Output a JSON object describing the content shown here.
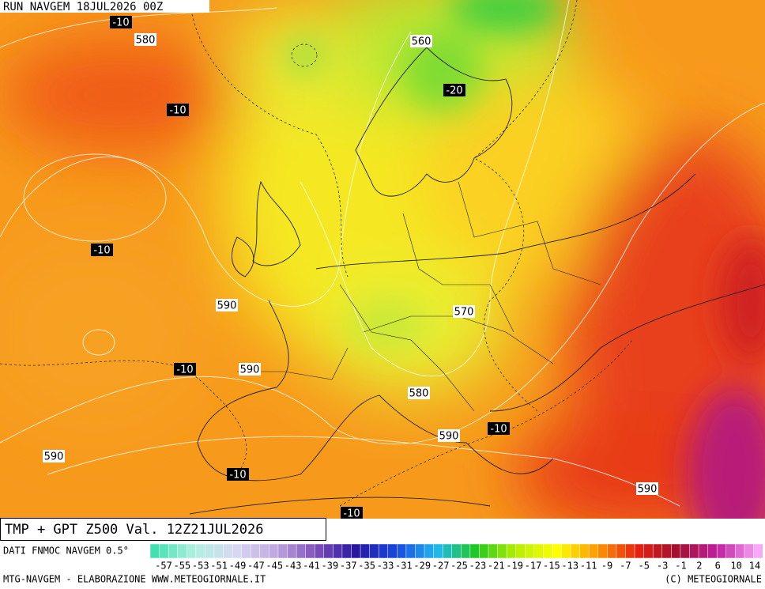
{
  "header": {
    "run": "RUN NAVGEM 18JUL2026 00Z"
  },
  "map": {
    "labels": [
      -10,
      580,
      560,
      -20,
      -10,
      -10,
      590,
      570,
      -10,
      590,
      580,
      590,
      -10,
      -10,
      590,
      590,
      -10
    ]
  },
  "footer": {
    "title": "TMP + GPT Z500 Val. 12Z21JUL2026",
    "source": "DATI FNMOC NAVGEM 0.5°",
    "scale": [
      -57,
      -55,
      -53,
      -51,
      -49,
      -47,
      -45,
      -43,
      -41,
      -39,
      -37,
      -35,
      -33,
      -31,
      -29,
      -27,
      -25,
      -23,
      -21,
      -19,
      -17,
      -15,
      -13,
      -11,
      -9,
      -7,
      -5,
      -3,
      -1,
      2,
      6,
      10,
      14
    ],
    "credit": "MTG-NAVGEM - ELABORAZIONE WWW.METEOGIORNALE.IT",
    "copyright": "(C) METEOGIORNALE"
  }
}
